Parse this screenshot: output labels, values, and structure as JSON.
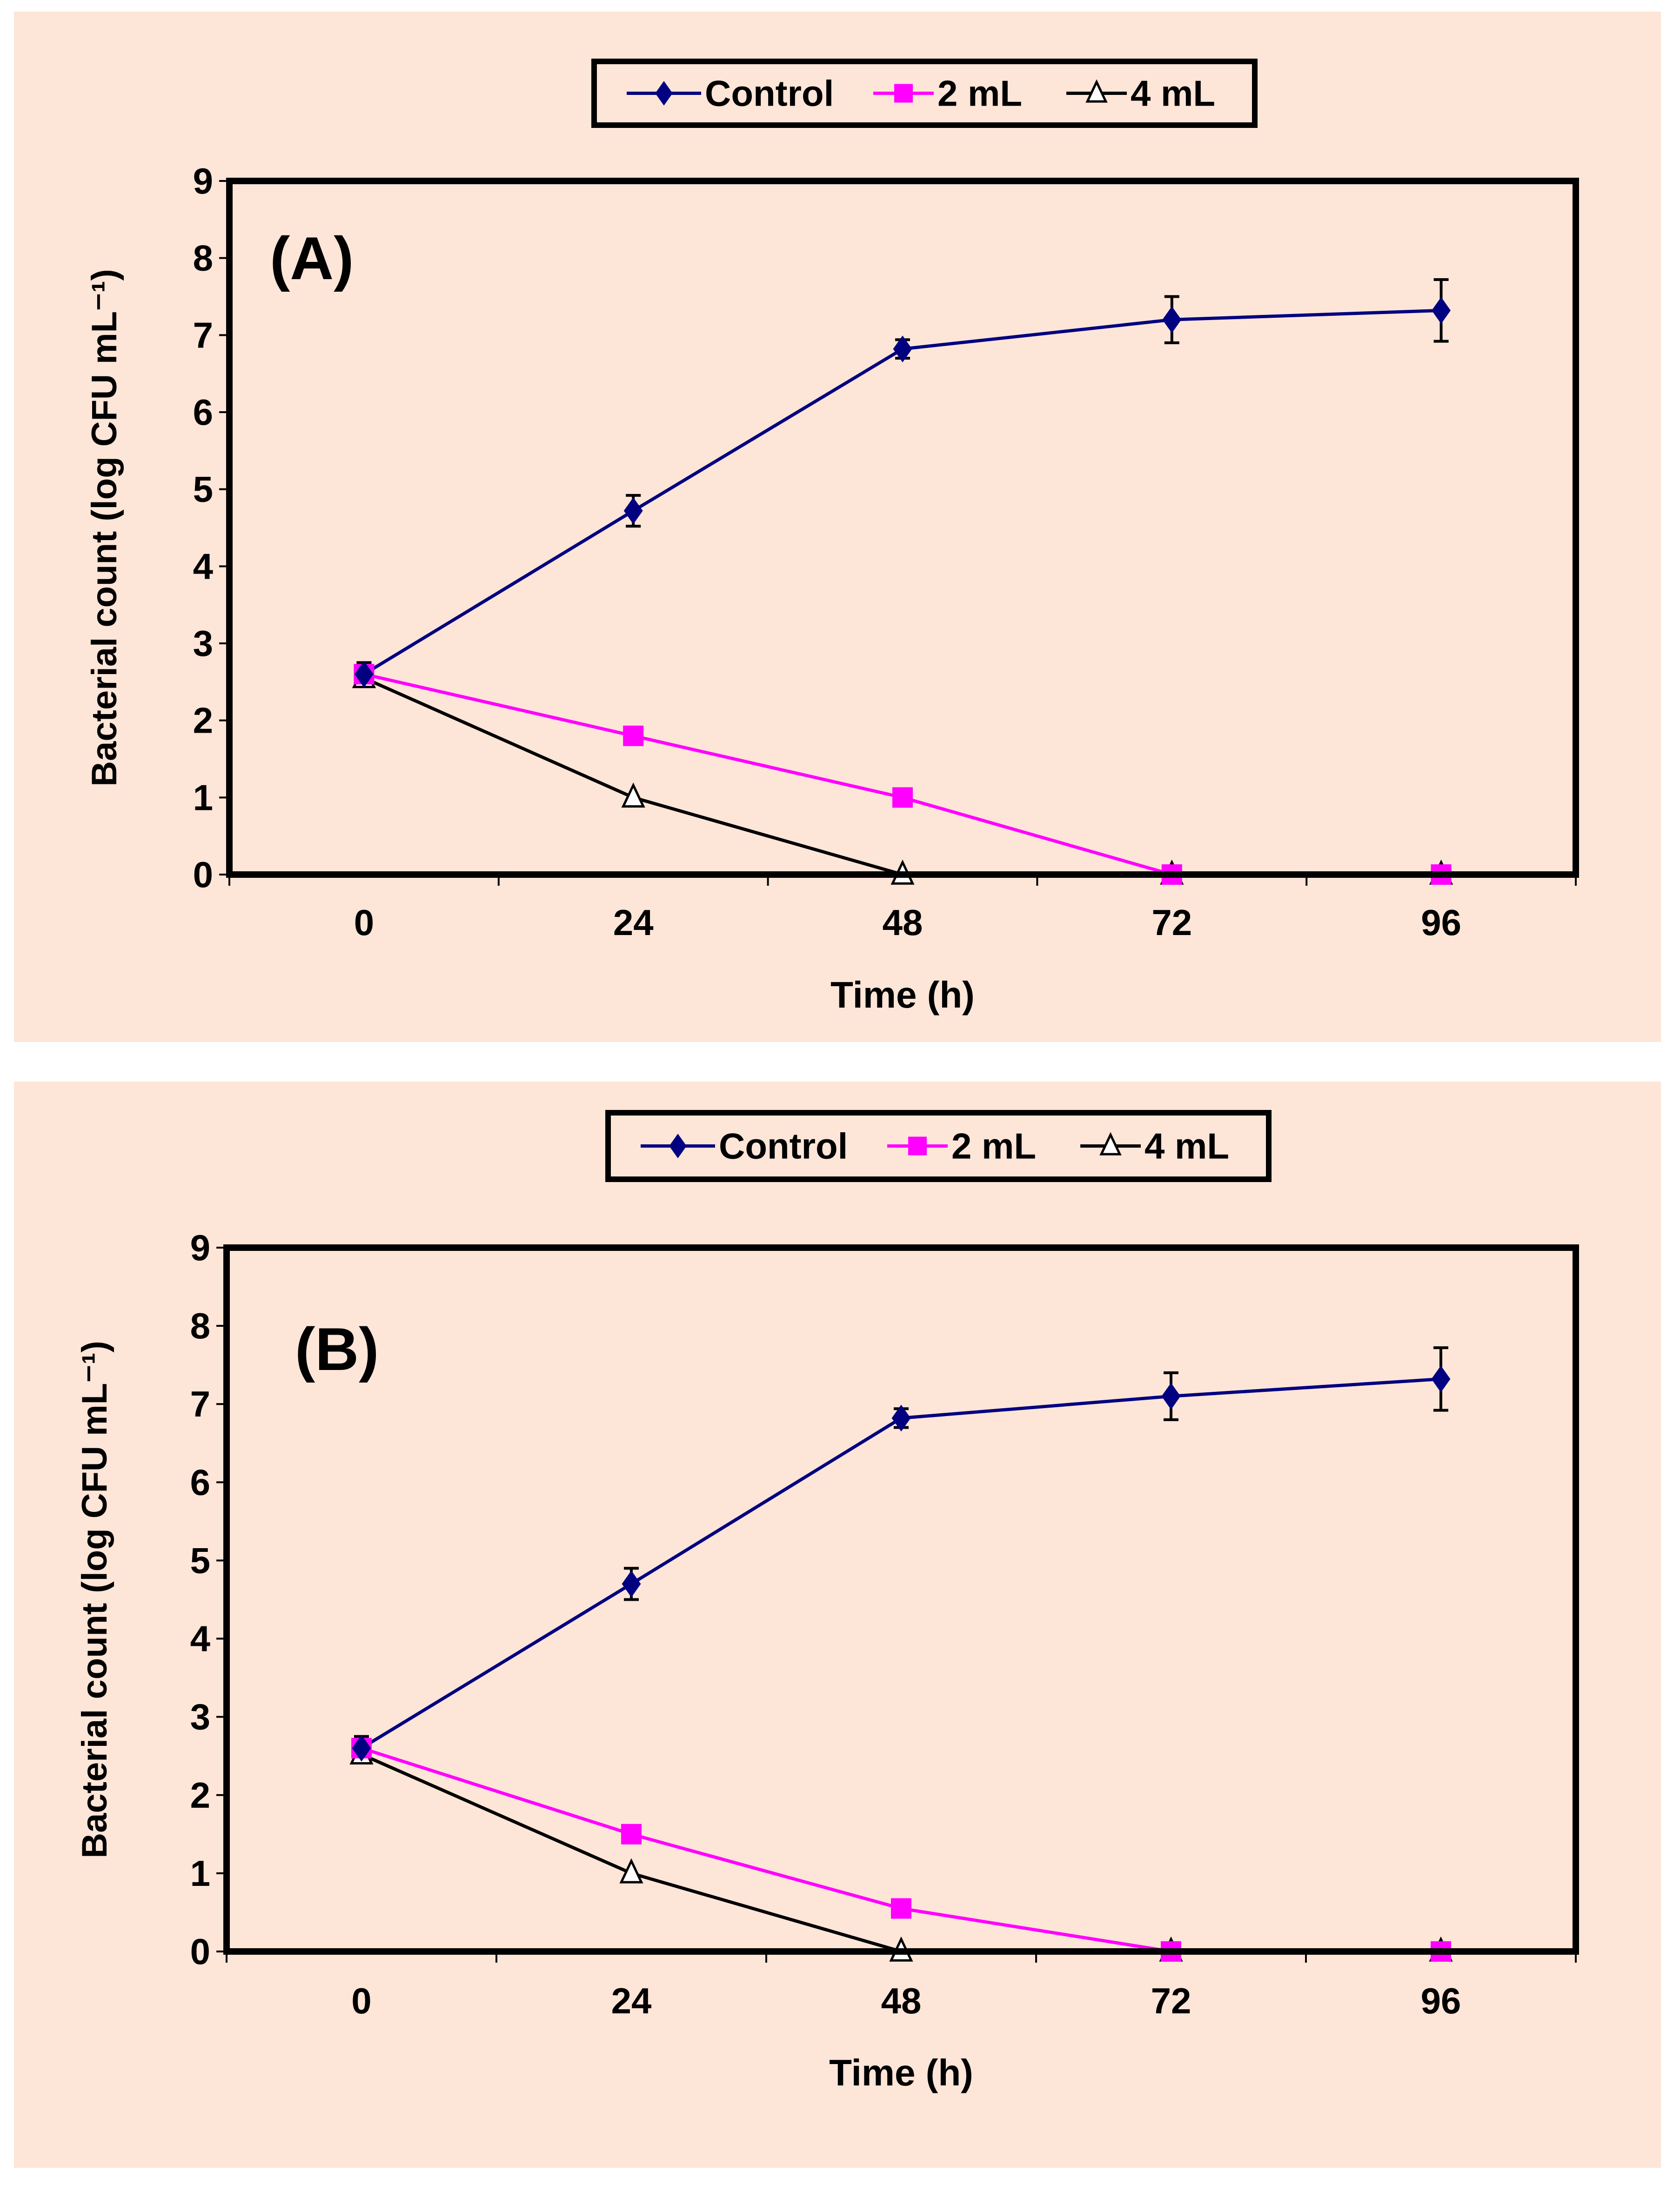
{
  "colors": {
    "background": "#FDE5D8",
    "control": "#000080",
    "ml2": "#FF00FF",
    "ml4": "#000000"
  },
  "chart_data": [
    {
      "type": "line",
      "panel_label": "(A)",
      "xlabel": "Time (h)",
      "ylabel": "Bacterial count (log CFU mL⁻¹)",
      "categories": [
        "0",
        "24",
        "48",
        "72",
        "96"
      ],
      "ylim": [
        0,
        9
      ],
      "yticks": [
        "0",
        "1",
        "2",
        "3",
        "4",
        "5",
        "6",
        "7",
        "8",
        "9"
      ],
      "legend_position": "top-center",
      "series": [
        {
          "name": "Control",
          "marker": "diamond",
          "values": [
            2.6,
            4.72,
            6.82,
            7.2,
            7.32
          ],
          "errors": [
            0.15,
            0.2,
            0.12,
            0.3,
            0.4
          ]
        },
        {
          "name": "2 mL",
          "marker": "square",
          "values": [
            2.6,
            1.8,
            1.0,
            0,
            0
          ]
        },
        {
          "name": "4 mL",
          "marker": "triangle",
          "values": [
            2.55,
            1.0,
            0,
            0,
            0
          ]
        }
      ]
    },
    {
      "type": "line",
      "panel_label": "(B)",
      "xlabel": "Time (h)",
      "ylabel": "Bacterial count (log CFU mL⁻¹)",
      "categories": [
        "0",
        "24",
        "48",
        "72",
        "96"
      ],
      "ylim": [
        0,
        9
      ],
      "yticks": [
        "0",
        "1",
        "2",
        "3",
        "4",
        "5",
        "6",
        "7",
        "8",
        "9"
      ],
      "legend_position": "top-center",
      "series": [
        {
          "name": "Control",
          "marker": "diamond",
          "values": [
            2.6,
            4.7,
            6.82,
            7.1,
            7.32
          ],
          "errors": [
            0.15,
            0.2,
            0.12,
            0.3,
            0.4
          ]
        },
        {
          "name": "2 mL",
          "marker": "square",
          "values": [
            2.6,
            1.5,
            0.55,
            0,
            0
          ]
        },
        {
          "name": "4 mL",
          "marker": "triangle",
          "values": [
            2.52,
            1.0,
            0,
            0,
            0
          ]
        }
      ]
    }
  ]
}
